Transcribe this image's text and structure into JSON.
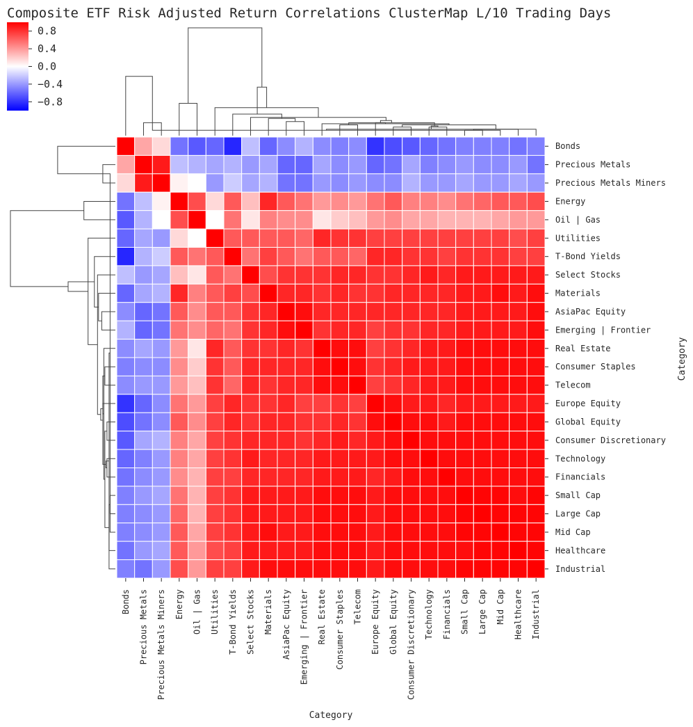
{
  "chart_data": {
    "type": "heatmap",
    "title": "Composite ETF Risk Adjusted Return Correlations ClusterMap L/10 Trading Days",
    "xlabel": "Category",
    "ylabel": "Category",
    "categories": [
      "Bonds",
      "Precious Metals",
      "Precious Metals Miners",
      "Energy",
      "Oil | Gas",
      "Utilities",
      "T-Bond Yields",
      "Select Stocks",
      "Materials",
      "AsiaPac Equity",
      "Emerging | Frontier",
      "Real Estate",
      "Consumer Staples",
      "Telecom",
      "Europe Equity",
      "Global Equity",
      "Consumer Discretionary",
      "Technology",
      "Financials",
      "Small Cap",
      "Large Cap",
      "Mid Cap",
      "Healthcare",
      "Industrial"
    ],
    "colorbar": {
      "min": -1,
      "max": 1,
      "ticks": [
        "0.8",
        "0.4",
        "0.0",
        "−0.4",
        "−0.8"
      ],
      "tick_values": [
        0.8,
        0.4,
        0.0,
        -0.4,
        -0.8
      ]
    },
    "colormap": {
      "low": "#0000ff",
      "mid": "#ffffff",
      "high": "#ff0000"
    },
    "values": [
      [
        1.0,
        0.35,
        0.15,
        -0.55,
        -0.65,
        -0.6,
        -0.85,
        -0.25,
        -0.6,
        -0.45,
        -0.3,
        -0.45,
        -0.5,
        -0.45,
        -0.8,
        -0.7,
        -0.65,
        -0.6,
        -0.55,
        -0.5,
        -0.5,
        -0.5,
        -0.55,
        -0.5
      ],
      [
        0.35,
        1.0,
        0.9,
        -0.25,
        -0.3,
        -0.35,
        -0.3,
        -0.4,
        -0.35,
        -0.6,
        -0.6,
        -0.35,
        -0.45,
        -0.4,
        -0.6,
        -0.55,
        -0.35,
        -0.5,
        -0.45,
        -0.4,
        -0.45,
        -0.45,
        -0.4,
        -0.55
      ],
      [
        0.15,
        0.9,
        1.0,
        0.05,
        0.0,
        -0.4,
        -0.2,
        -0.35,
        -0.3,
        -0.55,
        -0.55,
        -0.4,
        -0.45,
        -0.4,
        -0.45,
        -0.45,
        -0.3,
        -0.4,
        -0.4,
        -0.35,
        -0.4,
        -0.4,
        -0.35,
        -0.4
      ],
      [
        -0.55,
        -0.25,
        0.05,
        1.0,
        0.7,
        0.15,
        0.65,
        0.25,
        0.85,
        0.65,
        0.55,
        0.4,
        0.45,
        0.4,
        0.55,
        0.65,
        0.5,
        0.5,
        0.45,
        0.55,
        0.6,
        0.65,
        0.65,
        0.7
      ],
      [
        -0.65,
        -0.3,
        0.0,
        0.7,
        1.0,
        0.0,
        0.55,
        0.1,
        0.5,
        0.45,
        0.45,
        0.1,
        0.2,
        0.25,
        0.4,
        0.45,
        0.35,
        0.35,
        0.3,
        0.3,
        0.3,
        0.35,
        0.4,
        0.4
      ],
      [
        -0.6,
        -0.35,
        -0.4,
        0.15,
        0.0,
        1.0,
        0.65,
        0.65,
        0.65,
        0.65,
        0.6,
        0.85,
        0.8,
        0.8,
        0.75,
        0.75,
        0.75,
        0.75,
        0.75,
        0.75,
        0.75,
        0.75,
        0.7,
        0.75
      ],
      [
        -0.85,
        -0.3,
        -0.2,
        0.65,
        0.55,
        0.65,
        1.0,
        0.55,
        0.75,
        0.65,
        0.55,
        0.65,
        0.65,
        0.6,
        0.85,
        0.85,
        0.8,
        0.8,
        0.75,
        0.8,
        0.8,
        0.8,
        0.75,
        0.75
      ],
      [
        -0.25,
        -0.4,
        -0.35,
        0.25,
        0.1,
        0.65,
        0.55,
        1.0,
        0.7,
        0.8,
        0.8,
        0.8,
        0.85,
        0.85,
        0.8,
        0.8,
        0.85,
        0.9,
        0.85,
        0.9,
        0.9,
        0.9,
        0.9,
        0.9
      ],
      [
        -0.6,
        -0.35,
        -0.3,
        0.85,
        0.5,
        0.65,
        0.75,
        0.7,
        1.0,
        0.85,
        0.85,
        0.8,
        0.85,
        0.8,
        0.8,
        0.85,
        0.85,
        0.85,
        0.85,
        0.9,
        0.9,
        0.95,
        0.9,
        0.95
      ],
      [
        -0.45,
        -0.6,
        -0.55,
        0.65,
        0.45,
        0.65,
        0.65,
        0.8,
        0.85,
        1.0,
        0.95,
        0.85,
        0.85,
        0.85,
        0.85,
        0.85,
        0.85,
        0.85,
        0.85,
        0.9,
        0.9,
        0.9,
        0.9,
        0.95
      ],
      [
        -0.3,
        -0.6,
        -0.55,
        0.55,
        0.45,
        0.6,
        0.55,
        0.8,
        0.85,
        0.95,
        1.0,
        0.8,
        0.85,
        0.85,
        0.75,
        0.8,
        0.8,
        0.85,
        0.85,
        0.9,
        0.9,
        0.9,
        0.9,
        0.95
      ],
      [
        -0.45,
        -0.35,
        -0.4,
        0.4,
        0.1,
        0.85,
        0.65,
        0.8,
        0.8,
        0.85,
        0.8,
        1.0,
        0.95,
        0.95,
        0.75,
        0.8,
        0.85,
        0.9,
        0.9,
        0.95,
        0.95,
        0.95,
        0.95,
        0.95
      ],
      [
        -0.5,
        -0.45,
        -0.45,
        0.45,
        0.2,
        0.8,
        0.65,
        0.85,
        0.85,
        0.85,
        0.85,
        0.95,
        1.0,
        0.95,
        0.8,
        0.85,
        0.9,
        0.9,
        0.9,
        0.95,
        0.95,
        0.95,
        0.95,
        0.95
      ],
      [
        -0.45,
        -0.4,
        -0.4,
        0.4,
        0.25,
        0.8,
        0.6,
        0.85,
        0.8,
        0.85,
        0.85,
        0.95,
        0.95,
        1.0,
        0.75,
        0.8,
        0.85,
        0.9,
        0.9,
        0.95,
        0.95,
        0.95,
        0.95,
        0.95
      ],
      [
        -0.8,
        -0.6,
        -0.45,
        0.55,
        0.4,
        0.75,
        0.85,
        0.8,
        0.8,
        0.85,
        0.75,
        0.75,
        0.8,
        0.75,
        1.0,
        0.95,
        0.9,
        0.9,
        0.85,
        0.9,
        0.9,
        0.9,
        0.9,
        0.9
      ],
      [
        -0.7,
        -0.55,
        -0.45,
        0.65,
        0.45,
        0.75,
        0.85,
        0.8,
        0.85,
        0.85,
        0.8,
        0.8,
        0.85,
        0.8,
        0.95,
        1.0,
        0.95,
        0.95,
        0.9,
        0.95,
        0.95,
        0.95,
        0.95,
        0.95
      ],
      [
        -0.65,
        -0.35,
        -0.3,
        0.5,
        0.35,
        0.75,
        0.8,
        0.85,
        0.85,
        0.85,
        0.8,
        0.85,
        0.9,
        0.85,
        0.9,
        0.95,
        1.0,
        0.95,
        0.95,
        0.95,
        0.95,
        0.95,
        0.95,
        0.95
      ],
      [
        -0.6,
        -0.5,
        -0.4,
        0.5,
        0.35,
        0.75,
        0.8,
        0.9,
        0.85,
        0.85,
        0.85,
        0.9,
        0.9,
        0.9,
        0.9,
        0.95,
        0.95,
        1.0,
        0.95,
        0.95,
        0.95,
        0.95,
        0.95,
        0.95
      ],
      [
        -0.55,
        -0.45,
        -0.4,
        0.45,
        0.3,
        0.75,
        0.75,
        0.85,
        0.85,
        0.85,
        0.85,
        0.9,
        0.9,
        0.9,
        0.85,
        0.9,
        0.95,
        0.95,
        1.0,
        0.95,
        0.95,
        0.95,
        0.95,
        0.95
      ],
      [
        -0.5,
        -0.4,
        -0.35,
        0.55,
        0.3,
        0.75,
        0.8,
        0.9,
        0.9,
        0.9,
        0.9,
        0.95,
        0.95,
        0.95,
        0.9,
        0.95,
        0.95,
        0.95,
        0.95,
        1.0,
        0.98,
        0.98,
        0.95,
        0.98
      ],
      [
        -0.5,
        -0.45,
        -0.4,
        0.6,
        0.3,
        0.75,
        0.8,
        0.9,
        0.9,
        0.9,
        0.9,
        0.95,
        0.95,
        0.95,
        0.9,
        0.95,
        0.95,
        0.95,
        0.95,
        0.98,
        1.0,
        0.98,
        0.98,
        0.98
      ],
      [
        -0.5,
        -0.45,
        -0.4,
        0.65,
        0.35,
        0.75,
        0.8,
        0.9,
        0.95,
        0.9,
        0.9,
        0.95,
        0.95,
        0.95,
        0.9,
        0.95,
        0.95,
        0.95,
        0.95,
        0.98,
        0.98,
        1.0,
        0.98,
        0.98
      ],
      [
        -0.55,
        -0.4,
        -0.35,
        0.65,
        0.4,
        0.7,
        0.75,
        0.9,
        0.9,
        0.9,
        0.9,
        0.95,
        0.95,
        0.95,
        0.9,
        0.95,
        0.95,
        0.95,
        0.95,
        0.95,
        0.98,
        0.98,
        1.0,
        0.98
      ],
      [
        -0.5,
        -0.55,
        -0.4,
        0.7,
        0.4,
        0.75,
        0.75,
        0.9,
        0.95,
        0.95,
        0.95,
        0.95,
        0.95,
        0.95,
        0.9,
        0.95,
        0.95,
        0.95,
        0.95,
        0.98,
        0.98,
        0.98,
        0.98,
        1.0
      ]
    ]
  }
}
